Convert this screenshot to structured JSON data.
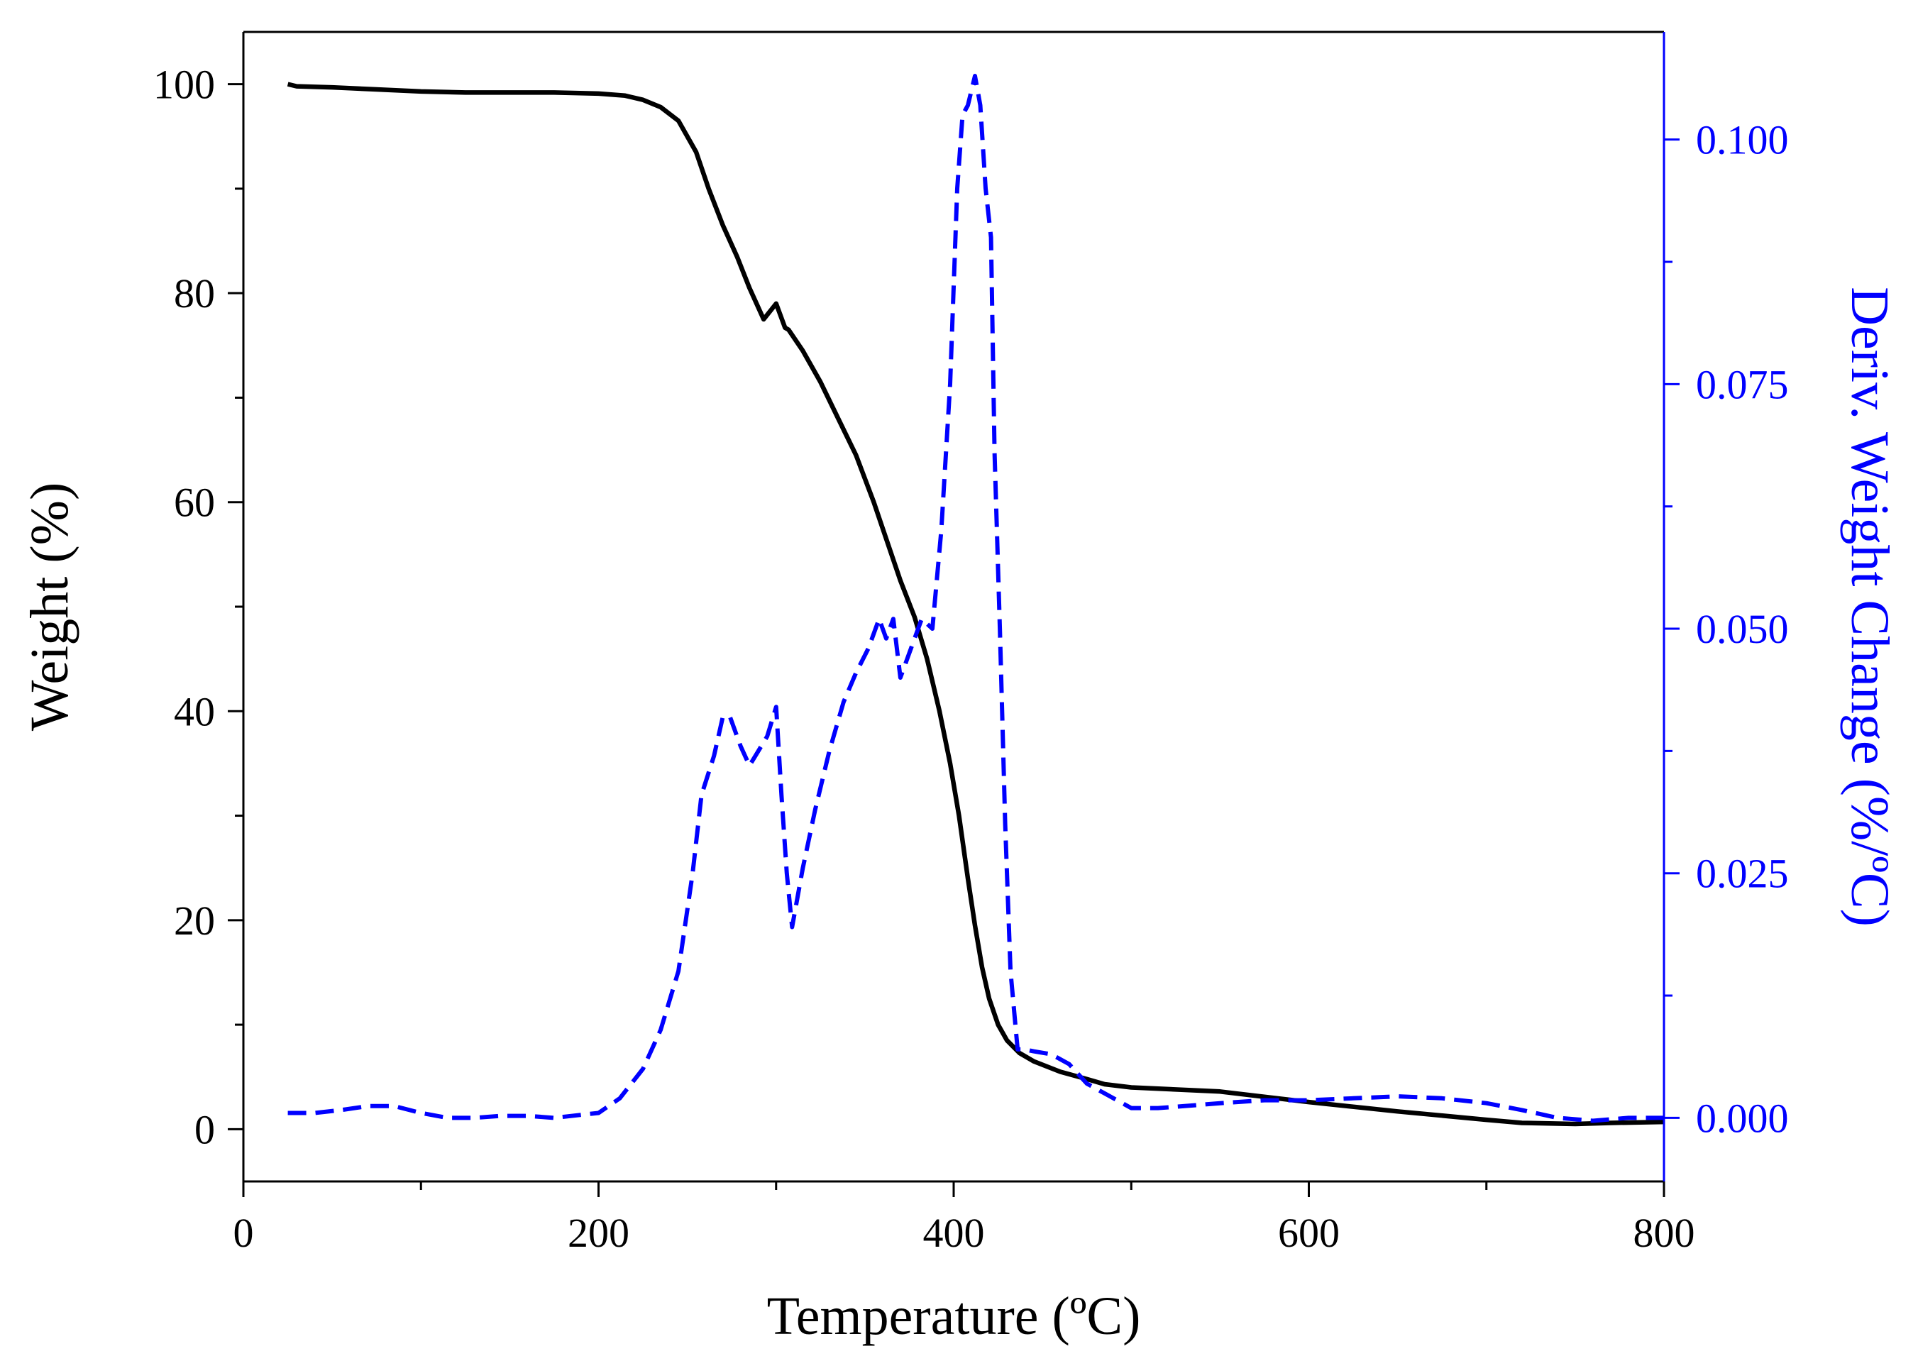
{
  "chart_data": {
    "type": "line",
    "title": "",
    "xlabel": "Temperature (ºC)",
    "ylabel_left": "Weight (%)",
    "ylabel_right": "Deriv. Weight Change (%/ºC)",
    "xlim": [
      0,
      800
    ],
    "ylim_left": [
      -5,
      105
    ],
    "ylim_right": [
      -0.0065,
      0.111
    ],
    "x_ticks": [
      "0",
      "200",
      "400",
      "600",
      "800"
    ],
    "y_left_ticks": [
      "0",
      "20",
      "40",
      "60",
      "80",
      "100"
    ],
    "y_right_ticks": [
      "0.000",
      "0.025",
      "0.050",
      "0.075",
      "0.100"
    ],
    "colors": {
      "weight": "#000000",
      "deriv": "#0000ff",
      "axis_left": "#000000",
      "axis_right": "#0000ff"
    },
    "grid": false,
    "series": [
      {
        "name": "Weight",
        "axis": "left",
        "style": "solid",
        "x": [
          25,
          30,
          50,
          75,
          100,
          125,
          150,
          175,
          200,
          215,
          225,
          235,
          245,
          255,
          262,
          270,
          278,
          285,
          293,
          300,
          305,
          307,
          315,
          325,
          335,
          345,
          355,
          362,
          370,
          378,
          385,
          392,
          398,
          403,
          408,
          412,
          416,
          420,
          425,
          430,
          437,
          445,
          460,
          475,
          485,
          500,
          550,
          600,
          650,
          700,
          720,
          750,
          770,
          800
        ],
        "y": [
          100.0,
          99.8,
          99.7,
          99.5,
          99.3,
          99.2,
          99.2,
          99.2,
          99.1,
          98.9,
          98.5,
          97.8,
          96.5,
          93.5,
          90.0,
          86.5,
          83.5,
          80.5,
          77.5,
          79.0,
          76.7,
          76.5,
          74.5,
          71.5,
          68.0,
          64.5,
          60.0,
          56.5,
          52.5,
          49.0,
          45.0,
          40.0,
          35.0,
          30.0,
          24.0,
          19.5,
          15.5,
          12.5,
          10.0,
          8.5,
          7.3,
          6.5,
          5.5,
          4.8,
          4.3,
          4.0,
          3.6,
          2.6,
          1.7,
          0.9,
          0.6,
          0.5,
          0.6,
          0.7
        ]
      },
      {
        "name": "Deriv. Weight Change",
        "axis": "right",
        "style": "dashed",
        "x": [
          25,
          40,
          55,
          70,
          85,
          100,
          115,
          130,
          145,
          160,
          175,
          190,
          200,
          212,
          225,
          235,
          245,
          253,
          258,
          265,
          270,
          274,
          280,
          285,
          290,
          295,
          300,
          303,
          306,
          309,
          315,
          322,
          330,
          338,
          345,
          352,
          358,
          362,
          366,
          370,
          378,
          382,
          388,
          393,
          398,
          402,
          405,
          408,
          412,
          415,
          418,
          421,
          423,
          426,
          429,
          432,
          436,
          440,
          445,
          455,
          465,
          475,
          485,
          500,
          515,
          530,
          550,
          575,
          600,
          625,
          650,
          675,
          700,
          720,
          740,
          760,
          780,
          800
        ],
        "y": [
          0.0005,
          0.0005,
          0.0008,
          0.0012,
          0.0012,
          0.0005,
          0.0,
          0.0,
          0.0002,
          0.0002,
          0.0,
          0.0003,
          0.0005,
          0.002,
          0.005,
          0.009,
          0.015,
          0.025,
          0.033,
          0.037,
          0.041,
          0.041,
          0.038,
          0.036,
          0.0375,
          0.039,
          0.042,
          0.033,
          0.025,
          0.0195,
          0.0255,
          0.0315,
          0.0375,
          0.0425,
          0.0455,
          0.048,
          0.051,
          0.049,
          0.051,
          0.045,
          0.049,
          0.051,
          0.05,
          0.06,
          0.075,
          0.095,
          0.1025,
          0.1035,
          0.1065,
          0.1035,
          0.095,
          0.09,
          0.068,
          0.05,
          0.03,
          0.015,
          0.007,
          0.007,
          0.0068,
          0.0065,
          0.0055,
          0.0035,
          0.0025,
          0.001,
          0.001,
          0.0012,
          0.0015,
          0.0018,
          0.0018,
          0.002,
          0.0022,
          0.002,
          0.0015,
          0.0008,
          0.0,
          -0.0003,
          0.0,
          0.0
        ]
      }
    ]
  }
}
